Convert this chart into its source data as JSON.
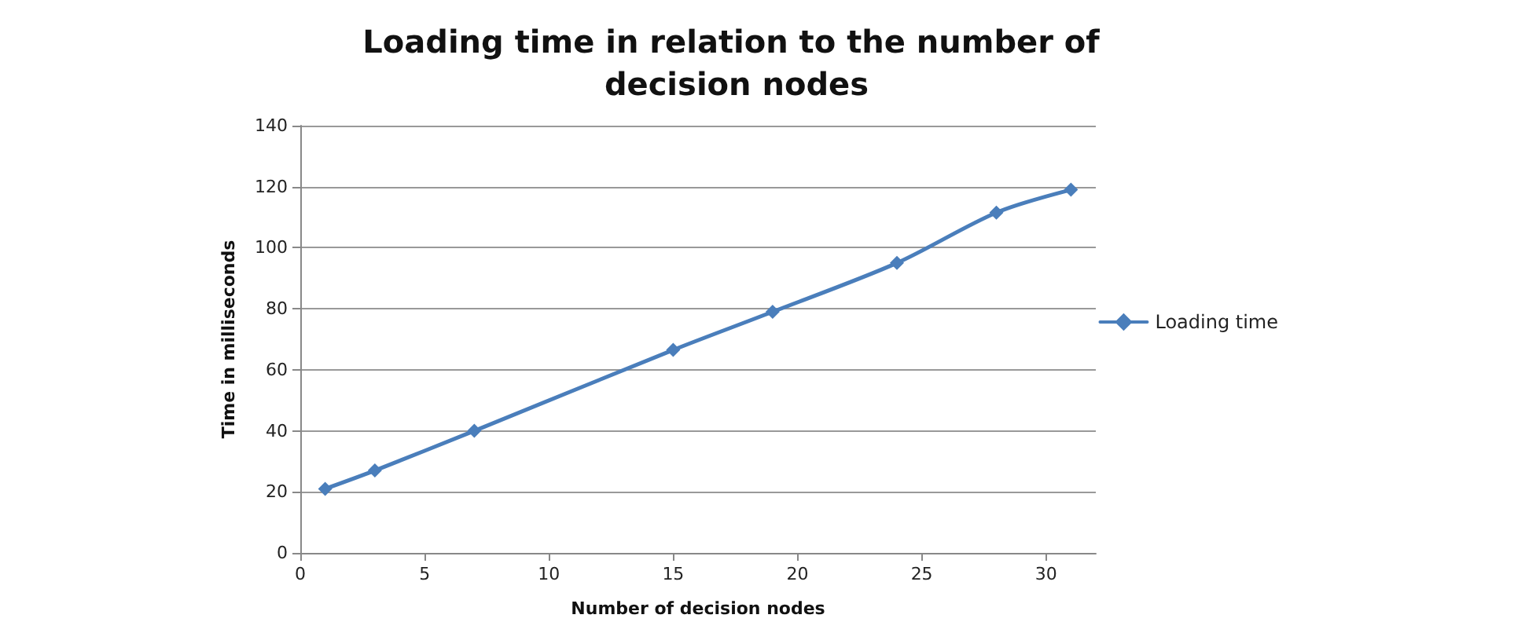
{
  "chart_data": {
    "type": "line",
    "title": "Loading time in relation to the number of decision nodes",
    "xlabel": "Number of decision nodes",
    "ylabel": "Time in milliseconds",
    "x": [
      1,
      3,
      7,
      15,
      19,
      24,
      28,
      31
    ],
    "series": [
      {
        "name": "Loading time",
        "color": "#4a7ebb",
        "values": [
          21,
          27,
          40,
          66.5,
          79,
          95,
          111.5,
          119
        ]
      }
    ],
    "xlim": [
      0,
      32
    ],
    "xticks": [
      0,
      5,
      10,
      15,
      20,
      25,
      30
    ],
    "ylim": [
      0,
      140
    ],
    "yticks": [
      0,
      20,
      40,
      60,
      80,
      100,
      120,
      140
    ],
    "grid": "y",
    "legend": "right",
    "marker": "diamond",
    "line_style": "solid"
  }
}
